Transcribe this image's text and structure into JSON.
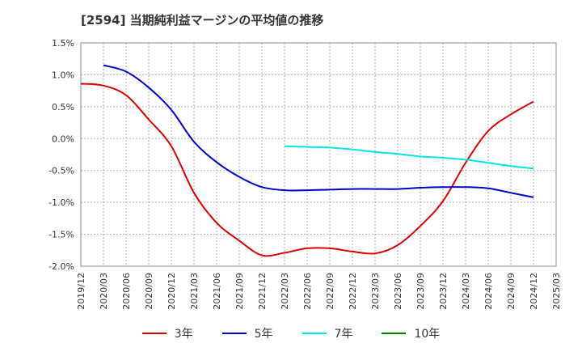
{
  "chart_data": {
    "type": "line",
    "title": "[2594]  当期純利益マージンの平均値の推移",
    "ylim": [
      -2.0,
      1.5
    ],
    "yticks": [
      "1.5%",
      "1.0%",
      "0.5%",
      "0.0%",
      "-0.5%",
      "-1.0%",
      "-1.5%",
      "-2.0%"
    ],
    "ytick_values": [
      1.5,
      1.0,
      0.5,
      0.0,
      -0.5,
      -1.0,
      -1.5,
      -2.0
    ],
    "x": [
      "2019/12",
      "2020/03",
      "2020/06",
      "2020/09",
      "2020/12",
      "2021/03",
      "2021/06",
      "2021/09",
      "2021/12",
      "2022/03",
      "2022/06",
      "2022/09",
      "2022/12",
      "2023/03",
      "2023/06",
      "2023/09",
      "2023/12",
      "2024/03",
      "2024/06",
      "2024/09",
      "2024/12",
      "2025/03"
    ],
    "grid": true,
    "legend_position": "bottom",
    "series": [
      {
        "name": "3年",
        "color": "#dd0000",
        "values": [
          0.86,
          0.83,
          0.68,
          0.3,
          -0.12,
          -0.85,
          -1.32,
          -1.6,
          -1.83,
          -1.79,
          -1.72,
          -1.72,
          -1.77,
          -1.8,
          -1.67,
          -1.37,
          -0.98,
          -0.38,
          0.12,
          0.38,
          0.58,
          null
        ]
      },
      {
        "name": "5年",
        "color": "#0000cc",
        "values": [
          null,
          1.15,
          1.05,
          0.8,
          0.45,
          -0.05,
          -0.37,
          -0.6,
          -0.76,
          -0.81,
          -0.81,
          -0.8,
          -0.79,
          -0.79,
          -0.79,
          -0.77,
          -0.76,
          -0.76,
          -0.78,
          -0.85,
          -0.92,
          null
        ]
      },
      {
        "name": "7年",
        "color": "#00e5e5",
        "values": [
          null,
          null,
          null,
          null,
          null,
          null,
          null,
          null,
          null,
          -0.12,
          -0.13,
          -0.14,
          -0.17,
          -0.21,
          -0.24,
          -0.28,
          -0.3,
          -0.33,
          -0.38,
          -0.43,
          -0.47,
          null
        ]
      },
      {
        "name": "10年",
        "color": "#008000",
        "values": [
          null,
          null,
          null,
          null,
          null,
          null,
          null,
          null,
          null,
          null,
          null,
          null,
          null,
          null,
          null,
          null,
          null,
          null,
          null,
          null,
          null,
          null
        ]
      }
    ]
  }
}
